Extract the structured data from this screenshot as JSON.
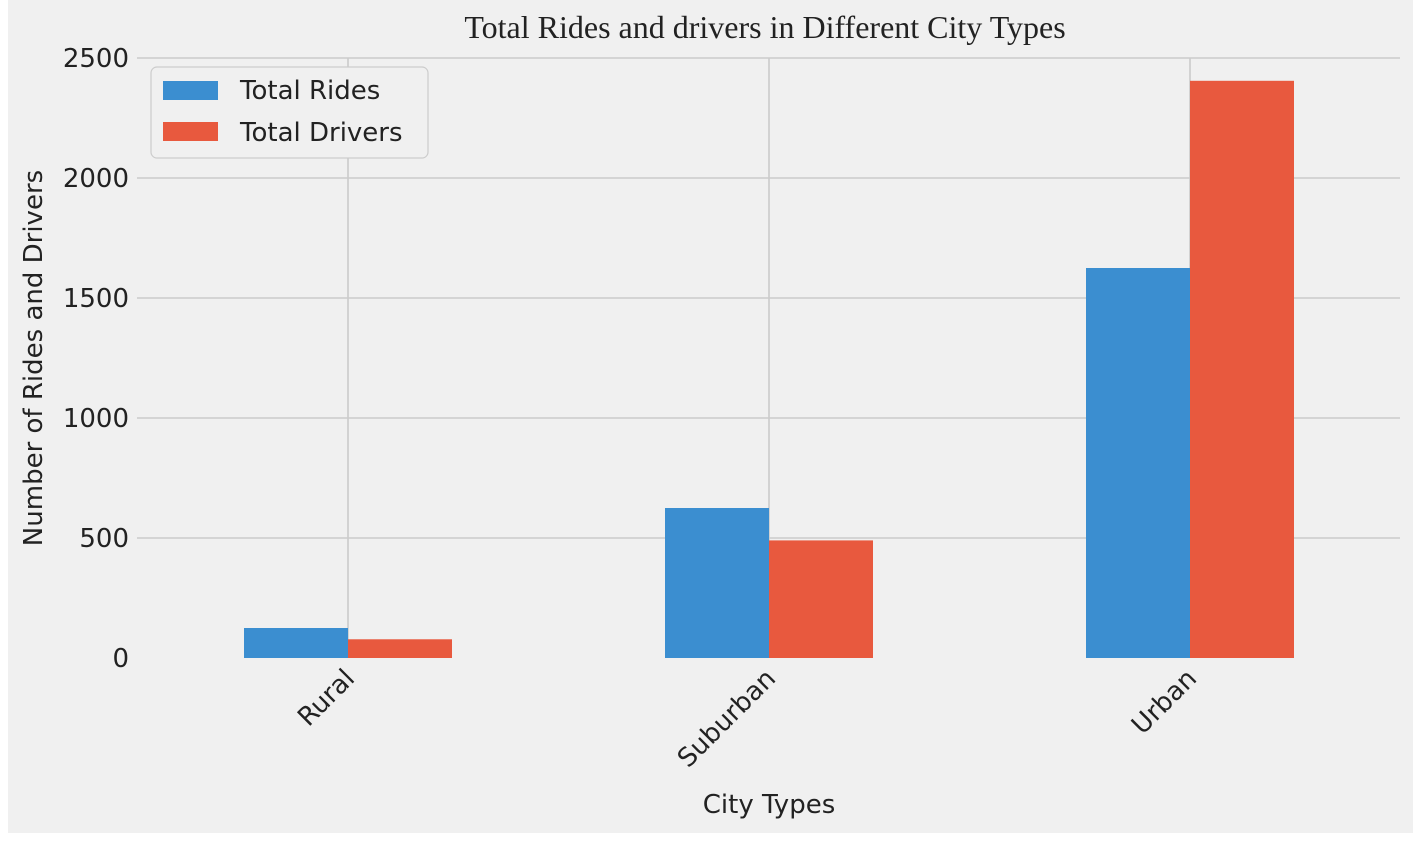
{
  "chart_data": {
    "type": "bar",
    "title": "Total Rides and drivers in Different City Types",
    "xlabel": "City Types",
    "ylabel": "Number of Rides and Drivers",
    "categories": [
      "Rural",
      "Suburban",
      "Urban"
    ],
    "series": [
      {
        "name": "Total Rides",
        "values": [
          125,
          625,
          1625
        ],
        "color": "#3b8ed0"
      },
      {
        "name": "Total Drivers",
        "values": [
          78,
          490,
          2405
        ],
        "color": "#e8593e"
      }
    ],
    "ylim": [
      0,
      2500
    ],
    "yticks": [
      0,
      500,
      1000,
      1500,
      2000,
      2500
    ],
    "ytick_labels": [
      "0",
      "500",
      "1000",
      "1500",
      "2000",
      "2500"
    ],
    "grid": true,
    "legend_position": "top-left",
    "background_color": "#f0f0f0",
    "grid_color": "#cbcbcb"
  }
}
